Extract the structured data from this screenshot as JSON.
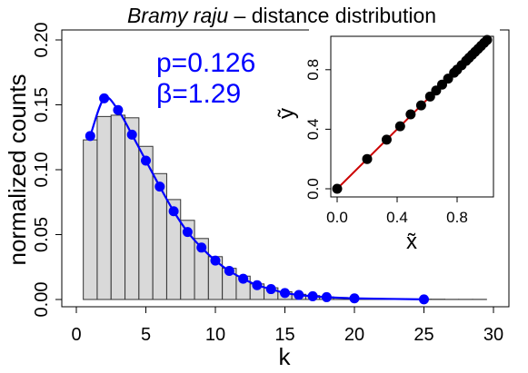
{
  "chart_data": [
    {
      "type": "bar+line",
      "title_italic": "Bramy raju",
      "title_rest": " – distance distribution",
      "xlabel": "k",
      "ylabel": "normalized counts",
      "xlim": [
        0,
        30
      ],
      "ylim": [
        0,
        0.2
      ],
      "x_ticks": [
        "0",
        "5",
        "10",
        "15",
        "20",
        "25",
        "30"
      ],
      "y_ticks": [
        "0.00",
        "0.05",
        "0.10",
        "0.15",
        "0.20"
      ],
      "annotations": [
        "p=0.126",
        "β=1.29"
      ],
      "histogram": {
        "bins": [
          [
            0.5,
            1.5
          ],
          [
            1.5,
            2.5
          ],
          [
            2.5,
            3.5
          ],
          [
            3.5,
            4.5
          ],
          [
            4.5,
            5.5
          ],
          [
            5.5,
            6.5
          ],
          [
            6.5,
            7.5
          ],
          [
            7.5,
            8.5
          ],
          [
            8.5,
            9.5
          ],
          [
            9.5,
            10.5
          ],
          [
            10.5,
            11.5
          ],
          [
            11.5,
            12.5
          ],
          [
            12.5,
            13.5
          ],
          [
            13.5,
            14.5
          ],
          [
            14.5,
            15.5
          ],
          [
            15.5,
            16.5
          ],
          [
            16.5,
            17.5
          ],
          [
            17.5,
            18.5
          ],
          [
            18.5,
            19.5
          ],
          [
            19.5,
            20.5
          ],
          [
            20.5,
            21.5
          ],
          [
            21.5,
            22.5
          ],
          [
            22.5,
            23.5
          ],
          [
            23.5,
            24.5
          ],
          [
            24.5,
            25.5
          ],
          [
            25.5,
            26.5
          ],
          [
            26.5,
            27.5
          ],
          [
            27.5,
            28.5
          ],
          [
            28.5,
            29.5
          ]
        ],
        "values": [
          0.123,
          0.141,
          0.142,
          0.14,
          0.118,
          0.097,
          0.077,
          0.061,
          0.047,
          0.033,
          0.024,
          0.018,
          0.012,
          0.009,
          0.006,
          0.004,
          0.003,
          0.002,
          0.0015,
          0.001,
          0.0008,
          0.0006,
          0.0004,
          0.0003,
          0.0002,
          0.0002,
          0.0001,
          0.0001,
          0.0001
        ],
        "fill": "#d9d9d9",
        "stroke": "#333333"
      },
      "fit": {
        "x": [
          1,
          2,
          3,
          4,
          5,
          6,
          7,
          8,
          9,
          10,
          11,
          12,
          13,
          14,
          15,
          16,
          17,
          18,
          20,
          25
        ],
        "y": [
          0.126,
          0.155,
          0.146,
          0.127,
          0.107,
          0.087,
          0.068,
          0.052,
          0.04,
          0.03,
          0.022,
          0.016,
          0.011,
          0.008,
          0.005,
          0.0035,
          0.0025,
          0.0018,
          0.0009,
          0.0001
        ],
        "color": "#0000ff"
      }
    },
    {
      "type": "scatter",
      "xlabel": "x̃",
      "ylabel": "ỹ",
      "xlim": [
        0,
        1
      ],
      "ylim": [
        0,
        1
      ],
      "x_ticks": [
        "0.0",
        "0.4",
        "0.8"
      ],
      "y_ticks": [
        "0.0",
        "0.4",
        "0.8"
      ],
      "points": {
        "x": [
          0.0,
          0.2,
          0.33,
          0.42,
          0.49,
          0.56,
          0.62,
          0.66,
          0.7,
          0.74,
          0.78,
          0.8,
          0.83,
          0.86,
          0.88,
          0.9,
          0.92,
          0.94,
          0.96,
          0.98,
          1.0
        ],
        "y": [
          0.0,
          0.2,
          0.33,
          0.42,
          0.5,
          0.56,
          0.62,
          0.66,
          0.7,
          0.74,
          0.78,
          0.8,
          0.83,
          0.86,
          0.88,
          0.9,
          0.92,
          0.94,
          0.96,
          0.98,
          1.0
        ]
      },
      "reference_line": {
        "from": [
          0,
          0
        ],
        "to": [
          1,
          1
        ],
        "color": "#cc0000"
      },
      "point_color": "#000000"
    }
  ]
}
